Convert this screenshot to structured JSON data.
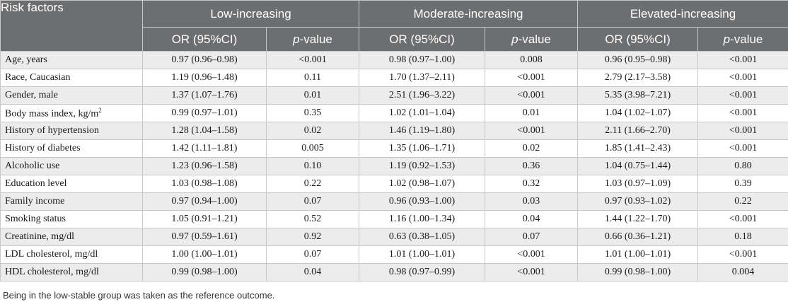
{
  "header": {
    "risk_factors": "Risk factors",
    "groups": [
      "Low-increasing",
      "Moderate-increasing",
      "Elevated-increasing"
    ],
    "or_label": "OR (95%CI)",
    "p_prefix": "p",
    "p_suffix": "-value"
  },
  "rows": [
    {
      "factor": "Age, years",
      "cells": [
        "0.97 (0.96–0.98)",
        "<0.001",
        "0.98 (0.97–1.00)",
        "0.008",
        "0.96 (0.95–0.98)",
        "<0.001"
      ]
    },
    {
      "factor": "Race, Caucasian",
      "cells": [
        "1.19 (0.96–1.48)",
        "0.11",
        "1.70 (1.37–2.11)",
        "<0.001",
        "2.79 (2.17–3.58)",
        "<0.001"
      ]
    },
    {
      "factor": "Gender, male",
      "cells": [
        "1.37 (1.07–1.76)",
        "0.01",
        "2.51 (1.96–3.22)",
        "<0.001",
        "5.35 (3.98–7.21)",
        "<0.001"
      ]
    },
    {
      "factor": "Body mass index, kg/m",
      "sup": "2",
      "cells": [
        "0.99 (0.97–1.01)",
        "0.35",
        "1.02 (1.01–1.04)",
        "0.01",
        "1.04 (1.02–1.07)",
        "<0.001"
      ]
    },
    {
      "factor": "History of hypertension",
      "cells": [
        "1.28 (1.04–1.58)",
        "0.02",
        "1.46 (1.19–1.80)",
        "<0.001",
        "2.11 (1.66–2.70)",
        "<0.001"
      ]
    },
    {
      "factor": "History of diabetes",
      "cells": [
        "1.42 (1.11–1.81)",
        "0.005",
        "1.35 (1.06–1.71)",
        "0.02",
        "1.85 (1.41–2.43)",
        "<0.001"
      ]
    },
    {
      "factor": "Alcoholic use",
      "cells": [
        "1.23 (0.96–1.58)",
        "0.10",
        "1.19 (0.92–1.53)",
        "0.36",
        "1.04 (0.75–1.44)",
        "0.80"
      ]
    },
    {
      "factor": "Education level",
      "cells": [
        "1.03 (0.98–1.08)",
        "0.22",
        "1.02 (0.98–1.07)",
        "0.32",
        "1.03 (0.97–1.09)",
        "0.39"
      ]
    },
    {
      "factor": "Family income",
      "cells": [
        "0.97 (0.94–1.00)",
        "0.07",
        "0.96 (0.93–1.00)",
        "0.03",
        "0.97 (0.93–1.02)",
        "0.22"
      ]
    },
    {
      "factor": "Smoking status",
      "cells": [
        "1.05 (0.91–1.21)",
        "0.52",
        "1.16 (1.00–1.34)",
        "0.04",
        "1.44 (1.22–1.70)",
        "<0.001"
      ]
    },
    {
      "factor": "Creatinine, mg/dl",
      "cells": [
        "0.97 (0.59–1.61)",
        "0.92",
        "0.63 (0.38–1.05)",
        "0.07",
        "0.66 (0.36–1.21)",
        "0.18"
      ]
    },
    {
      "factor": "LDL cholesterol, mg/dl",
      "cells": [
        "1.00 (1.00–1.01)",
        "0.07",
        "1.01 (1.00–1.01)",
        "<0.001",
        "1.01 (1.00–1.01)",
        "<0.001"
      ]
    },
    {
      "factor": "HDL cholesterol, mg/dl",
      "cells": [
        "0.99 (0.98–1.00)",
        "0.04",
        "0.98 (0.97–0.99)",
        "<0.001",
        "0.99 (0.98–1.00)",
        "0.004"
      ]
    }
  ],
  "footnote": "Being in the low-stable group was taken as the reference outcome."
}
